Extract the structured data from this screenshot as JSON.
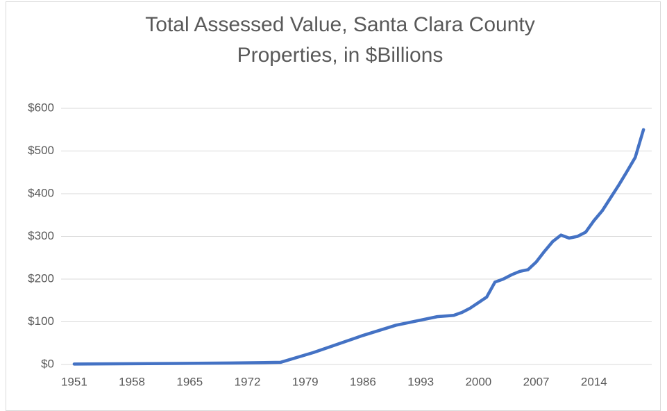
{
  "chart_data": {
    "type": "line",
    "title": "Total Assessed Value, Santa Clara County Properties, in $Billions",
    "x": [
      1951,
      1960,
      1970,
      1976,
      1980,
      1986,
      1990,
      1993,
      1995,
      1997,
      1998,
      1999,
      2000,
      2001,
      2002,
      2003,
      2004,
      2005,
      2006,
      2007,
      2008,
      2009,
      2010,
      2011,
      2012,
      2013,
      2014,
      2015,
      2016,
      2017,
      2018,
      2019,
      2020
    ],
    "series": [
      {
        "name": "Total Assessed Value",
        "color": "#4472c4",
        "values": [
          1,
          2,
          3.5,
          5,
          28,
          68,
          92,
          104,
          112,
          115,
          122,
          132,
          145,
          158,
          193,
          200,
          210,
          218,
          222,
          240,
          265,
          288,
          303,
          296,
          300,
          310,
          337,
          360,
          390,
          420,
          452,
          485,
          550
        ]
      }
    ],
    "xlim": [
      1950,
      2021
    ],
    "xticks": [
      1951,
      1958,
      1965,
      1972,
      1979,
      1986,
      1993,
      2000,
      2007,
      2014
    ],
    "ylim": [
      0,
      600
    ],
    "yticks": [
      {
        "value": 0,
        "label": "$0"
      },
      {
        "value": 100,
        "label": "$100"
      },
      {
        "value": 200,
        "label": "$200"
      },
      {
        "value": 300,
        "label": "$300"
      },
      {
        "value": 400,
        "label": "$400"
      },
      {
        "value": 500,
        "label": "$500"
      },
      {
        "value": 600,
        "label": "$600"
      }
    ],
    "grid": true
  }
}
